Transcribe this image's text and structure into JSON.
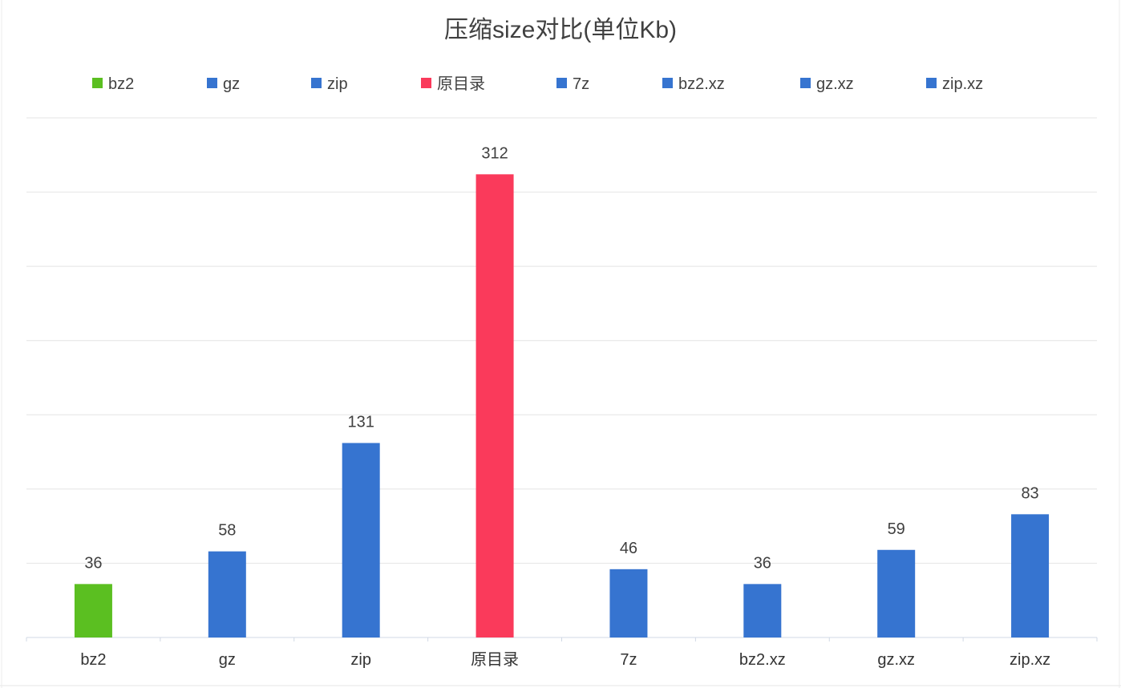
{
  "chart_data": {
    "type": "bar",
    "title": "压缩size对比(单位Kb)",
    "xlabel": "",
    "ylabel": "",
    "categories": [
      "bz2",
      "gz",
      "zip",
      "原目录",
      "7z",
      "bz2.xz",
      "gz.xz",
      "zip.xz"
    ],
    "values": [
      36,
      58,
      131,
      312,
      46,
      36,
      59,
      83
    ],
    "colors": [
      "#5bbf21",
      "#3674d0",
      "#3674d0",
      "#fa3a5b",
      "#3674d0",
      "#3674d0",
      "#3674d0",
      "#3674d0"
    ],
    "legend": {
      "position": "top",
      "entries": [
        "bz2",
        "gz",
        "zip",
        "原目录",
        "7z",
        "bz2.xz",
        "gz.xz",
        "zip.xz"
      ]
    },
    "ylim": [
      0,
      350
    ],
    "grid": true,
    "y_tick_labels_shown": false,
    "data_labels_shown": true
  }
}
